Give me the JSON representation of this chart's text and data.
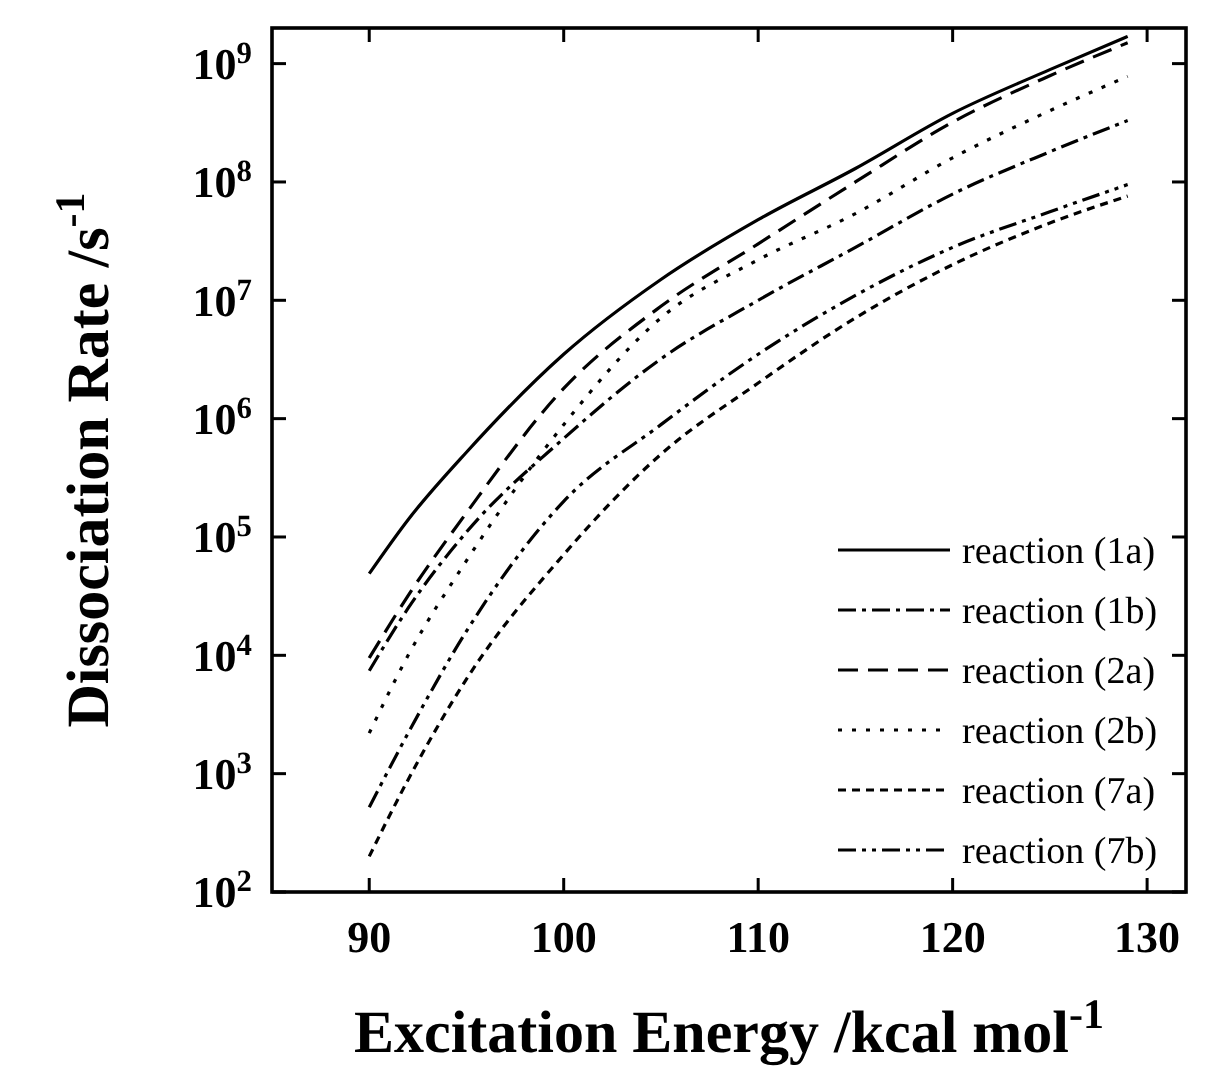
{
  "chart_data": {
    "type": "line",
    "xlabel": "Excitation Energy /kcal mol$^{-1}$",
    "ylabel": "Dissociation Rate /s$^{-1}$",
    "log": "y",
    "xlim": [
      85,
      132
    ],
    "xticks": [
      90,
      100,
      110,
      120,
      130
    ],
    "ylim": [
      100,
      2000000000
    ],
    "yticks": [
      {
        "value": 100,
        "label": "10$^{2}$"
      },
      {
        "value": 1000,
        "label": "10$^{3}$"
      },
      {
        "value": 10000,
        "label": "10$^{4}$"
      },
      {
        "value": 100000,
        "label": "10$^{5}$"
      },
      {
        "value": 1000000,
        "label": "10$^{6}$"
      },
      {
        "value": 10000000,
        "label": "10$^{7}$"
      },
      {
        "value": 100000000,
        "label": "10$^{8}$"
      },
      {
        "value": 1000000000,
        "label": "10$^{9}$"
      }
    ],
    "x": [
      90,
      92,
      95,
      100,
      105,
      110,
      115,
      120,
      125,
      129
    ],
    "grid": false,
    "legend": "bottom right",
    "series": [
      {
        "name": "reaction (1a)",
        "color": "#000000",
        "line_style": "solid",
        "values": [
          49000.0,
          140000.0,
          520000.0,
          3500000.0,
          15000000.0,
          48000000.0,
          130000000.0,
          380000000.0,
          890000000.0,
          1700000000.0
        ]
      },
      {
        "name": "reaction (1b)",
        "color": "#000000",
        "line_style": "dashdot",
        "values": [
          7400.0,
          25000.0,
          110000.0,
          680000.0,
          3200000.0,
          10000000.0,
          28000000.0,
          79000000.0,
          180000000.0,
          330000000.0
        ]
      },
      {
        "name": "reaction (2a)",
        "color": "#000000",
        "line_style": "dashed",
        "values": [
          9500.0,
          32000.0,
          160000.0,
          1800000.0,
          8900000.0,
          30000000.0,
          100000000.0,
          320000000.0,
          790000000.0,
          1500000000.0
        ]
      },
      {
        "name": "reaction (2b)",
        "color": "#000000",
        "line_style": "dotted",
        "values": [
          2200.0,
          10000.0,
          63000.0,
          890000.0,
          7100000.0,
          22000000.0,
          54000000.0,
          160000000.0,
          400000000.0,
          780000000.0
        ]
      },
      {
        "name": "reaction (7a)",
        "color": "#000000",
        "line_style": "shortdash",
        "values": [
          200.0,
          890.0,
          6300.0,
          71000.0,
          500000.0,
          2000000.0,
          7100000.0,
          20000000.0,
          45000000.0,
          76000000.0
        ]
      },
      {
        "name": "reaction (7b)",
        "color": "#000000",
        "line_style": "dashdotdot",
        "values": [
          520.0,
          2200.0,
          16000.0,
          200000.0,
          890000.0,
          3500000.0,
          11000000.0,
          28000000.0,
          56000000.0,
          95000000.0
        ]
      }
    ]
  }
}
